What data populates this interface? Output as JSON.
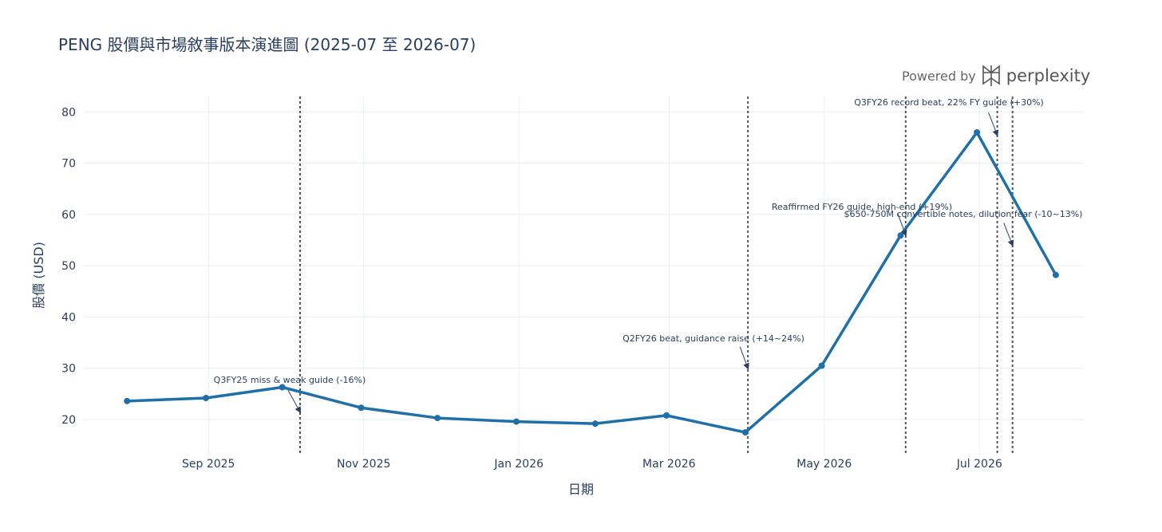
{
  "chart_data": {
    "type": "line",
    "title": "PENG 股價與市場敘事版本演進圖 (2025-07 至 2026-07)",
    "xlabel": "日期",
    "ylabel": "股價 (USD)",
    "ylim": [
      13,
      83
    ],
    "xlim": [
      "2025-07-14",
      "2026-08-11"
    ],
    "grid": true,
    "legend": "none",
    "line_color": "#1f6fa8",
    "event_line_color": "#555555",
    "x_ticks": [
      {
        "date": "2025-09-01",
        "label": "Sep 2025"
      },
      {
        "date": "2025-11-01",
        "label": "Nov 2025"
      },
      {
        "date": "2026-01-01",
        "label": "Jan 2026"
      },
      {
        "date": "2026-03-01",
        "label": "Mar 2026"
      },
      {
        "date": "2026-05-01",
        "label": "May 2026"
      },
      {
        "date": "2026-07-01",
        "label": "Jul 2026"
      }
    ],
    "y_ticks": [
      20,
      30,
      40,
      50,
      60,
      70,
      80
    ],
    "series": [
      {
        "x": [
          "2025-07-31",
          "2025-08-31",
          "2025-09-30",
          "2025-10-31",
          "2025-11-30",
          "2025-12-31",
          "2026-01-31",
          "2026-02-28",
          "2026-03-31",
          "2026-04-30",
          "2026-05-31",
          "2026-06-30",
          "2026-07-31"
        ],
        "values": [
          23.6,
          24.2,
          26.3,
          22.3,
          20.3,
          19.6,
          19.2,
          20.8,
          17.5,
          30.5,
          55.9,
          76.0,
          48.2
        ]
      }
    ],
    "event_lines": [
      "2025-10-07",
      "2026-04-01",
      "2026-06-02",
      "2026-07-08",
      "2026-07-14"
    ],
    "annotations": [
      {
        "text": "Q3FY25 miss & weak guide (-16%)",
        "x": "2025-10-07",
        "y": 21.5
      },
      {
        "text": "Q2FY26 beat, guidance raise (+14~24%)",
        "x": "2026-04-01",
        "y": 30.0
      },
      {
        "text": "Reaffirmed FY26 guide, high-end (+19%)",
        "x": "2026-06-02",
        "y": 56.0
      },
      {
        "text": "$650-750M convertible notes, dilution fear (-10~13%)",
        "x": "2026-07-14",
        "y": 54.0
      },
      {
        "text": "Q3FY26 record beat, 22% FY guide (+30%)",
        "x": "2026-07-08",
        "y": 75.5
      }
    ]
  },
  "brand": {
    "powered_label": "Powered by",
    "name": "perplexity",
    "logo_icon": "perplexity-logo-icon"
  }
}
